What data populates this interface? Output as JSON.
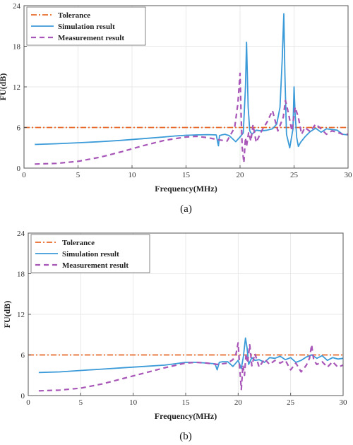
{
  "chart_data": [
    {
      "type": "line",
      "caption": "(a)",
      "xlabel": "Frequency(MHz)",
      "ylabel": "FU(dB)",
      "xlim": [
        0,
        30
      ],
      "ylim": [
        0,
        24
      ],
      "xticks": [
        0,
        5,
        10,
        15,
        20,
        25,
        30
      ],
      "yticks": [
        0,
        6,
        12,
        18,
        24
      ],
      "grid": true,
      "legend": "top-left",
      "series": [
        {
          "name": "Tolerance",
          "color": "#e8692a",
          "style": "dashdot",
          "x": [
            0,
            30
          ],
          "y": [
            6,
            6
          ]
        },
        {
          "name": "Simulation result",
          "color": "#3b9ad8",
          "style": "solid",
          "x": [
            1,
            3,
            5,
            7,
            9,
            11,
            13,
            14,
            15,
            16,
            17,
            17.8,
            18,
            18.1,
            18.3,
            18.6,
            19,
            19.6,
            20.0,
            20.3,
            20.5,
            20.6,
            20.75,
            20.9,
            21.1,
            21.5,
            22,
            22.5,
            23,
            23.4,
            23.7,
            23.9,
            24.05,
            24.15,
            24.3,
            24.6,
            24.9,
            25.0,
            25.1,
            25.25,
            25.4,
            25.6,
            26,
            26.5,
            27,
            27.5,
            28,
            29,
            29.5,
            30
          ],
          "y": [
            3.5,
            3.6,
            3.75,
            3.9,
            4.1,
            4.35,
            4.6,
            4.75,
            4.85,
            4.9,
            4.95,
            4.9,
            3.3,
            4.8,
            4.9,
            5.0,
            4.8,
            3.9,
            4.6,
            5.2,
            12.0,
            18.6,
            9.0,
            5.5,
            5.0,
            5.6,
            5.5,
            5.6,
            5.8,
            6.5,
            9.0,
            16.0,
            22.8,
            14.0,
            5.0,
            3.0,
            5.8,
            12.0,
            8.0,
            4.5,
            3.2,
            3.8,
            4.6,
            5.4,
            5.9,
            5.3,
            5.8,
            5.6,
            5.0,
            4.9
          ]
        },
        {
          "name": "Measurement result",
          "color": "#a855b8",
          "style": "dashed",
          "x": [
            1,
            3,
            5,
            7,
            9,
            11,
            13,
            15,
            16,
            17,
            18,
            18.8,
            19.5,
            19.8,
            20.0,
            20.1,
            20.2,
            20.35,
            20.5,
            20.6,
            20.8,
            21.0,
            21.2,
            21.5,
            22,
            22.5,
            23,
            23.5,
            24,
            24.2,
            24.5,
            24.8,
            25.1,
            25.4,
            25.7,
            26,
            26.5,
            27,
            27.5,
            28,
            28.5,
            29,
            29.5,
            30
          ],
          "y": [
            0.6,
            0.7,
            1.0,
            1.6,
            2.4,
            3.3,
            4.1,
            4.6,
            4.7,
            4.5,
            4.2,
            4.0,
            6.0,
            9.5,
            14.0,
            8.0,
            3.0,
            0.8,
            4.5,
            3.2,
            5.3,
            4.0,
            6.4,
            3.8,
            5.5,
            6.8,
            8.5,
            5.5,
            7.5,
            10.0,
            8.0,
            5.5,
            9.0,
            7.5,
            5.0,
            6.0,
            5.4,
            6.5,
            5.8,
            5.0,
            5.5,
            5.3,
            5.0,
            5.0
          ]
        }
      ]
    },
    {
      "type": "line",
      "caption": "(b)",
      "xlabel": "Frequency(MHz)",
      "ylabel": "FU(dB)",
      "xlim": [
        0,
        30
      ],
      "ylim": [
        0,
        24
      ],
      "xticks": [
        0,
        5,
        10,
        15,
        20,
        25,
        30
      ],
      "yticks": [
        0,
        6,
        12,
        18,
        24
      ],
      "grid": true,
      "legend": "top-left",
      "series": [
        {
          "name": "Tolerance",
          "color": "#e8692a",
          "style": "dashdot",
          "x": [
            0,
            30
          ],
          "y": [
            6,
            6
          ]
        },
        {
          "name": "Simulation result",
          "color": "#3b9ad8",
          "style": "solid",
          "x": [
            1,
            3,
            5,
            7,
            9,
            11,
            13,
            14,
            15,
            16,
            17,
            17.8,
            18.0,
            18.2,
            18.5,
            19,
            19.5,
            20.0,
            20.3,
            20.5,
            20.7,
            20.85,
            21.0,
            21.3,
            21.6,
            22,
            22.5,
            23,
            23.5,
            24,
            24.5,
            25,
            25.5,
            26,
            26.5,
            27,
            27.5,
            28,
            28.5,
            29,
            29.5,
            30
          ],
          "y": [
            3.4,
            3.5,
            3.7,
            3.9,
            4.1,
            4.3,
            4.5,
            4.7,
            4.9,
            4.9,
            4.8,
            4.7,
            3.8,
            4.9,
            5.0,
            5.0,
            4.3,
            5.2,
            4.0,
            5.8,
            8.5,
            7.0,
            4.6,
            5.6,
            5.2,
            5.3,
            4.9,
            5.6,
            5.5,
            5.8,
            5.3,
            5.6,
            4.9,
            5.2,
            5.7,
            6.0,
            5.5,
            5.9,
            5.2,
            5.6,
            5.4,
            5.5
          ]
        },
        {
          "name": "Measurement result",
          "color": "#a855b8",
          "style": "dashed",
          "x": [
            1,
            3,
            5,
            7,
            9,
            11,
            13,
            15,
            16,
            17,
            18,
            19,
            19.5,
            19.8,
            20.0,
            20.15,
            20.3,
            20.45,
            20.6,
            20.75,
            20.9,
            21.1,
            21.3,
            21.6,
            22,
            22.5,
            23,
            23.5,
            24,
            24.5,
            25,
            25.5,
            26,
            26.5,
            26.8,
            27.0,
            27.2,
            27.5,
            28,
            28.5,
            29,
            29.5,
            30
          ],
          "y": [
            0.7,
            0.8,
            1.1,
            1.7,
            2.5,
            3.3,
            4.1,
            4.8,
            4.9,
            4.8,
            4.6,
            4.8,
            5.3,
            6.2,
            7.8,
            4.0,
            0.9,
            4.5,
            3.0,
            6.2,
            4.8,
            7.5,
            4.4,
            6.2,
            4.2,
            5.4,
            4.6,
            5.2,
            4.8,
            5.2,
            3.8,
            4.8,
            3.5,
            4.5,
            5.5,
            7.5,
            5.2,
            4.6,
            5.0,
            4.2,
            5.0,
            4.2,
            4.5
          ]
        }
      ]
    }
  ]
}
